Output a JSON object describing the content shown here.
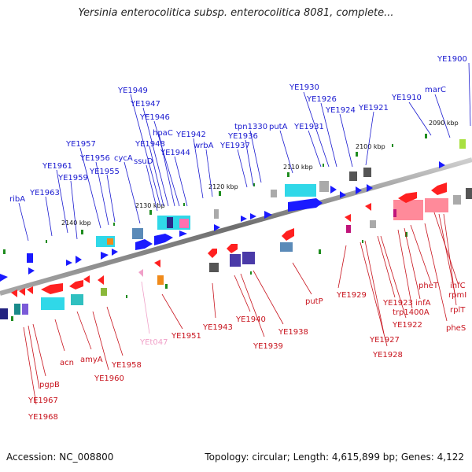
{
  "title": "Yersinia enterocolitica subsp. enterocolitica 8081, complete...",
  "footer": {
    "accession": "Accession: NC_008800",
    "summary": "Topology: circular; Length: 4,615,899 bp; Genes: 4,122"
  },
  "ticks": [
    "2090 kbp",
    "2100 kbp",
    "2110 kbp",
    "2120 kbp",
    "2130 kbp",
    "2140 kbp"
  ],
  "forward_genes": [
    "YE1900",
    "marC",
    "YE1910",
    "YE1921",
    "YE1924",
    "YE1926",
    "YE1930",
    "YE1931",
    "putA",
    "tpn1330",
    "YE1936",
    "YE1937",
    "wrbA",
    "YE1942",
    "YE1944",
    "YE1946",
    "hpaC",
    "YE1947",
    "YE1948",
    "YE1949",
    "ssuD",
    "cycA",
    "YE1955",
    "YE1956",
    "YE1957",
    "YE1959",
    "YE1961",
    "YE1963",
    "ribA"
  ],
  "reverse_genes": [
    "infC",
    "rpmI",
    "rplT",
    "pheS",
    "pheT",
    "infA",
    "trp1400A",
    "YE1922",
    "YE1923",
    "YE1927",
    "YE1928",
    "YE1929",
    "putP",
    "YE1938",
    "YE1939",
    "YE1940",
    "YE1943",
    "YE1951",
    "YEt047",
    "YE1958",
    "YE1960",
    "amyA",
    "acn",
    "pgpB",
    "YE1967",
    "YE1968"
  ],
  "colors": {
    "forward_label": "#1a1ad0",
    "reverse_label": "#c8141e",
    "trna_label": "#f0a0c8",
    "backbone": "#888888",
    "tick": "#1e8c1e"
  }
}
